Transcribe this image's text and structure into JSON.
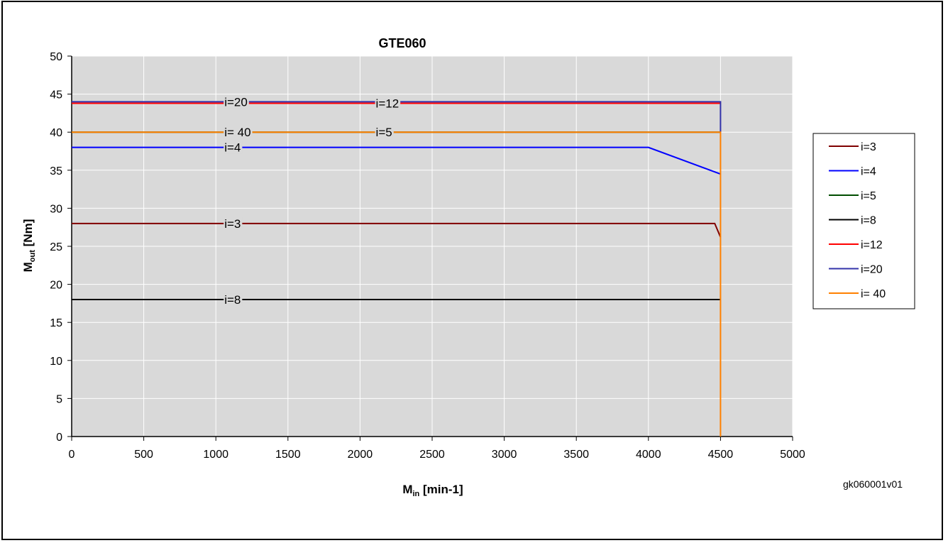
{
  "chart_data": {
    "type": "line",
    "title": "GTE060",
    "xlabel": {
      "main": "M",
      "sub": "in",
      "rest": " [min-1]"
    },
    "ylabel": {
      "main": "M",
      "sub": "out",
      "rest": " [Nm]"
    },
    "xlim": [
      0,
      5000
    ],
    "ylim": [
      0,
      50
    ],
    "xticks": [
      0,
      500,
      1000,
      1500,
      2000,
      2500,
      3000,
      3500,
      4000,
      4500,
      5000
    ],
    "yticks": [
      0,
      5,
      10,
      15,
      20,
      25,
      30,
      35,
      40,
      45,
      50
    ],
    "grid": true,
    "plot_background": "#d9d9d9",
    "legend_position": "right",
    "series": [
      {
        "name": "i=3",
        "color": "#800000",
        "x": [
          0,
          4460,
          4500
        ],
        "y": [
          28,
          28,
          26.2
        ],
        "inline_label": {
          "text": "i=3",
          "x": 1000
        }
      },
      {
        "name": "i=4",
        "color": "#0000ff",
        "x": [
          0,
          4000,
          4500
        ],
        "y": [
          38,
          38,
          34.5
        ],
        "inline_label": {
          "text": "i=4",
          "x": 1000
        }
      },
      {
        "name": "i=5",
        "color": "#004d00",
        "x": [
          0,
          4500
        ],
        "y": [
          40,
          40
        ],
        "inline_label": {
          "text": "i=5",
          "x": 2050
        }
      },
      {
        "name": "i=8",
        "color": "#000000",
        "x": [
          0,
          4500
        ],
        "y": [
          18,
          18
        ],
        "inline_label": {
          "text": "i=8",
          "x": 1000
        }
      },
      {
        "name": "i=12",
        "color": "#ff0000",
        "x": [
          0,
          4500
        ],
        "y": [
          43.8,
          43.8
        ],
        "inline_label": {
          "text": "i=12",
          "x": 2050
        }
      },
      {
        "name": "i=20",
        "color": "#3333aa",
        "x": [
          0,
          4500,
          4500
        ],
        "y": [
          44,
          44,
          40
        ],
        "inline_label": {
          "text": "i=20",
          "x": 1000
        }
      },
      {
        "name": "i= 40",
        "color": "#ff8000",
        "x": [
          0,
          4500,
          4500
        ],
        "y": [
          40,
          40,
          0
        ],
        "inline_label": {
          "text": "i= 40",
          "x": 1000
        }
      }
    ]
  },
  "footer_code": "gk060001v01"
}
